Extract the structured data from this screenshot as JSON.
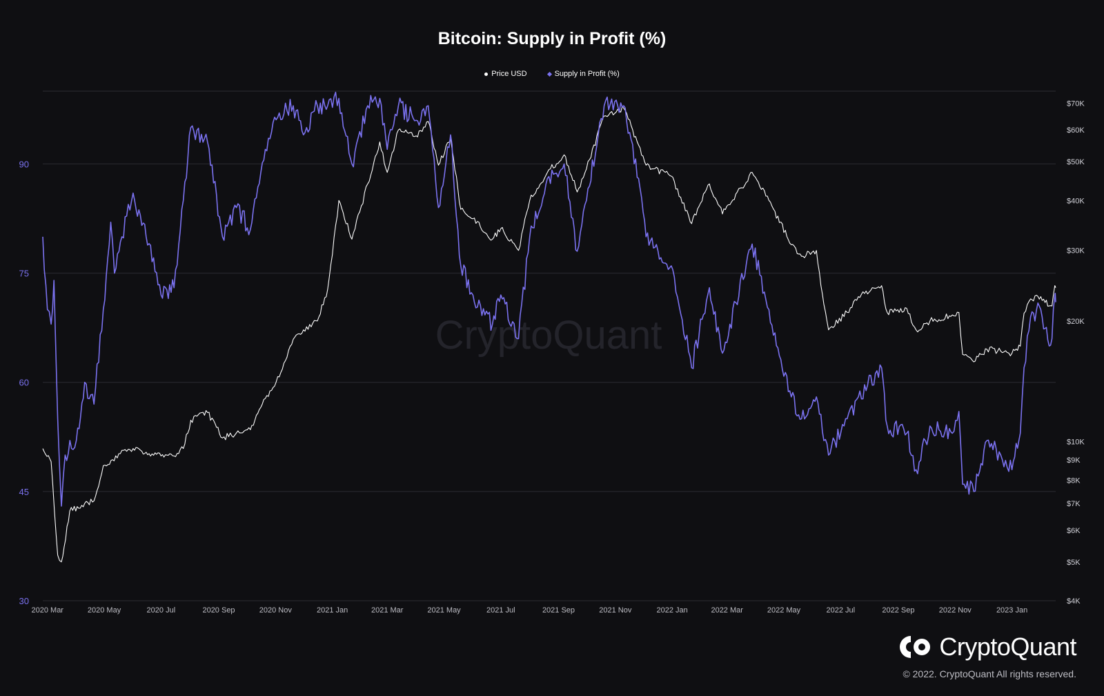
{
  "legend": {
    "price_label": "Price USD",
    "supply_label": "Supply in Profit (%)"
  },
  "watermark": "CryptoQuant",
  "brand": {
    "name": "CryptoQuant",
    "copyright": "© 2022. CryptoQuant All rights reserved."
  },
  "colors": {
    "background": "#0f0f12",
    "price": "#ffffff",
    "supply": "#7b72f0",
    "grid": "#2c2c33",
    "left_axis": "#7b72f0",
    "right_axis": "#cfcfd6",
    "x_axis": "#bdbdc4"
  },
  "chart_data": {
    "type": "line",
    "title": "Bitcoin: Supply in Profit (%)",
    "x_tick_labels": [
      "2020 Mar",
      "2020 May",
      "2020 Jul",
      "2020 Sep",
      "2020 Nov",
      "2021 Jan",
      "2021 Mar",
      "2021 May",
      "2021 Jul",
      "2021 Sep",
      "2021 Nov",
      "2022 Jan",
      "2022 Mar",
      "2022 May",
      "2022 Jul",
      "2022 Sep",
      "2022 Nov",
      "2023 Jan"
    ],
    "x_range": [
      "2020-02-25",
      "2023-02-17"
    ],
    "y_left": {
      "ticks": [
        30,
        45,
        60,
        75,
        90
      ],
      "range": [
        30,
        100
      ]
    },
    "y_right": {
      "scale": "log",
      "ticks": [
        4000,
        5000,
        6000,
        7000,
        8000,
        9000,
        10000,
        20000,
        30000,
        40000,
        50000,
        60000,
        70000
      ],
      "tick_labels": [
        "$4K",
        "$5K",
        "$6K",
        "$7K",
        "$8K",
        "$9K",
        "$10K",
        "$20K",
        "$30K",
        "$40K",
        "$50K",
        "$60K",
        "$70K"
      ],
      "range": [
        4000,
        75000
      ]
    },
    "grid": true,
    "legend_position": "top-center",
    "series": [
      {
        "name": "Price USD",
        "axis": "right",
        "color": "#ffffff",
        "points": [
          [
            "2020-02-25",
            9600
          ],
          [
            "2020-03-05",
            8900
          ],
          [
            "2020-03-12",
            5200
          ],
          [
            "2020-03-16",
            5000
          ],
          [
            "2020-03-25",
            6700
          ],
          [
            "2020-04-10",
            7000
          ],
          [
            "2020-04-20",
            7100
          ],
          [
            "2020-04-30",
            8700
          ],
          [
            "2020-05-10",
            9000
          ],
          [
            "2020-05-20",
            9500
          ],
          [
            "2020-06-01",
            9600
          ],
          [
            "2020-06-15",
            9400
          ],
          [
            "2020-07-01",
            9200
          ],
          [
            "2020-07-15",
            9200
          ],
          [
            "2020-07-25",
            9600
          ],
          [
            "2020-08-02",
            11300
          ],
          [
            "2020-08-20",
            11800
          ],
          [
            "2020-09-05",
            10200
          ],
          [
            "2020-09-20",
            10500
          ],
          [
            "2020-10-05",
            10700
          ],
          [
            "2020-10-21",
            12800
          ],
          [
            "2020-11-05",
            14500
          ],
          [
            "2020-11-20",
            18000
          ],
          [
            "2020-12-01",
            19000
          ],
          [
            "2020-12-16",
            20000
          ],
          [
            "2020-12-27",
            24000
          ],
          [
            "2021-01-08",
            40000
          ],
          [
            "2021-01-22",
            32000
          ],
          [
            "2021-02-08",
            44000
          ],
          [
            "2021-02-21",
            56000
          ],
          [
            "2021-03-01",
            47000
          ],
          [
            "2021-03-13",
            60000
          ],
          [
            "2021-04-01",
            58000
          ],
          [
            "2021-04-14",
            63000
          ],
          [
            "2021-04-25",
            49000
          ],
          [
            "2021-05-08",
            57000
          ],
          [
            "2021-05-19",
            38000
          ],
          [
            "2021-06-01",
            36000
          ],
          [
            "2021-06-22",
            32000
          ],
          [
            "2021-07-01",
            34000
          ],
          [
            "2021-07-20",
            30000
          ],
          [
            "2021-08-01",
            40000
          ],
          [
            "2021-08-20",
            47000
          ],
          [
            "2021-09-07",
            52000
          ],
          [
            "2021-09-21",
            42000
          ],
          [
            "2021-10-01",
            48000
          ],
          [
            "2021-10-20",
            65000
          ],
          [
            "2021-11-10",
            68000
          ],
          [
            "2021-11-26",
            55000
          ],
          [
            "2021-12-04",
            49000
          ],
          [
            "2021-12-31",
            46000
          ],
          [
            "2022-01-22",
            35000
          ],
          [
            "2022-02-10",
            44000
          ],
          [
            "2022-02-24",
            37000
          ],
          [
            "2022-03-28",
            47000
          ],
          [
            "2022-04-15",
            40000
          ],
          [
            "2022-05-09",
            31000
          ],
          [
            "2022-05-20",
            29000
          ],
          [
            "2022-06-05",
            30000
          ],
          [
            "2022-06-13",
            22000
          ],
          [
            "2022-06-18",
            19000
          ],
          [
            "2022-07-08",
            21000
          ],
          [
            "2022-07-20",
            23000
          ],
          [
            "2022-08-14",
            24500
          ],
          [
            "2022-08-20",
            21000
          ],
          [
            "2022-09-10",
            21500
          ],
          [
            "2022-09-20",
            19000
          ],
          [
            "2022-10-05",
            20000
          ],
          [
            "2022-10-29",
            20700
          ],
          [
            "2022-11-05",
            21000
          ],
          [
            "2022-11-09",
            16500
          ],
          [
            "2022-11-21",
            15800
          ],
          [
            "2022-12-05",
            17000
          ],
          [
            "2022-12-20",
            16800
          ],
          [
            "2023-01-01",
            16600
          ],
          [
            "2023-01-10",
            17300
          ],
          [
            "2023-01-14",
            20900
          ],
          [
            "2023-01-21",
            22700
          ],
          [
            "2023-02-01",
            23000
          ],
          [
            "2023-02-10",
            21800
          ],
          [
            "2023-02-13",
            21800
          ],
          [
            "2023-02-16",
            24500
          ],
          [
            "2023-02-17",
            24200
          ]
        ]
      },
      {
        "name": "Supply in Profit (%)",
        "axis": "left",
        "color": "#7b72f0",
        "points": [
          [
            "2020-02-25",
            80
          ],
          [
            "2020-03-01",
            70
          ],
          [
            "2020-03-05",
            68
          ],
          [
            "2020-03-08",
            74
          ],
          [
            "2020-03-12",
            55
          ],
          [
            "2020-03-16",
            43
          ],
          [
            "2020-03-20",
            50
          ],
          [
            "2020-04-01",
            52
          ],
          [
            "2020-04-10",
            60
          ],
          [
            "2020-04-20",
            57
          ],
          [
            "2020-04-30",
            70
          ],
          [
            "2020-05-08",
            82
          ],
          [
            "2020-05-12",
            75
          ],
          [
            "2020-05-20",
            80
          ],
          [
            "2020-06-01",
            86
          ],
          [
            "2020-06-15",
            80
          ],
          [
            "2020-07-01",
            72
          ],
          [
            "2020-07-15",
            73
          ],
          [
            "2020-07-25",
            85
          ],
          [
            "2020-08-02",
            95
          ],
          [
            "2020-08-20",
            93
          ],
          [
            "2020-09-05",
            80
          ],
          [
            "2020-09-20",
            84
          ],
          [
            "2020-10-05",
            81
          ],
          [
            "2020-10-21",
            92
          ],
          [
            "2020-11-05",
            97
          ],
          [
            "2020-11-20",
            98
          ],
          [
            "2020-12-01",
            94
          ],
          [
            "2020-12-16",
            98
          ],
          [
            "2020-12-27",
            98
          ],
          [
            "2021-01-08",
            99
          ],
          [
            "2021-01-22",
            90
          ],
          [
            "2021-02-08",
            98
          ],
          [
            "2021-02-21",
            99
          ],
          [
            "2021-03-01",
            92
          ],
          [
            "2021-03-13",
            98
          ],
          [
            "2021-04-01",
            96
          ],
          [
            "2021-04-14",
            98
          ],
          [
            "2021-04-25",
            84
          ],
          [
            "2021-05-08",
            94
          ],
          [
            "2021-05-19",
            76
          ],
          [
            "2021-06-01",
            72
          ],
          [
            "2021-06-22",
            68
          ],
          [
            "2021-07-01",
            72
          ],
          [
            "2021-07-20",
            66
          ],
          [
            "2021-08-01",
            80
          ],
          [
            "2021-08-20",
            88
          ],
          [
            "2021-09-07",
            90
          ],
          [
            "2021-09-21",
            78
          ],
          [
            "2021-10-01",
            85
          ],
          [
            "2021-10-20",
            98
          ],
          [
            "2021-11-10",
            98
          ],
          [
            "2021-11-26",
            88
          ],
          [
            "2021-12-04",
            80
          ],
          [
            "2021-12-31",
            76
          ],
          [
            "2022-01-22",
            62
          ],
          [
            "2022-02-10",
            73
          ],
          [
            "2022-02-24",
            64
          ],
          [
            "2022-03-28",
            79
          ],
          [
            "2022-04-15",
            70
          ],
          [
            "2022-05-09",
            58
          ],
          [
            "2022-05-20",
            55
          ],
          [
            "2022-06-05",
            58
          ],
          [
            "2022-06-13",
            52
          ],
          [
            "2022-06-18",
            50
          ],
          [
            "2022-07-08",
            55
          ],
          [
            "2022-07-20",
            58
          ],
          [
            "2022-08-14",
            62
          ],
          [
            "2022-08-20",
            54
          ],
          [
            "2022-09-10",
            53
          ],
          [
            "2022-09-20",
            48
          ],
          [
            "2022-10-05",
            54
          ],
          [
            "2022-10-29",
            53
          ],
          [
            "2022-11-05",
            56
          ],
          [
            "2022-11-09",
            46
          ],
          [
            "2022-11-21",
            45
          ],
          [
            "2022-12-05",
            52
          ],
          [
            "2022-12-20",
            50
          ],
          [
            "2023-01-01",
            48
          ],
          [
            "2023-01-10",
            53
          ],
          [
            "2023-01-14",
            62
          ],
          [
            "2023-01-21",
            69
          ],
          [
            "2023-02-01",
            70
          ],
          [
            "2023-02-10",
            65
          ],
          [
            "2023-02-13",
            66
          ],
          [
            "2023-02-16",
            72
          ],
          [
            "2023-02-17",
            71
          ]
        ]
      }
    ]
  }
}
